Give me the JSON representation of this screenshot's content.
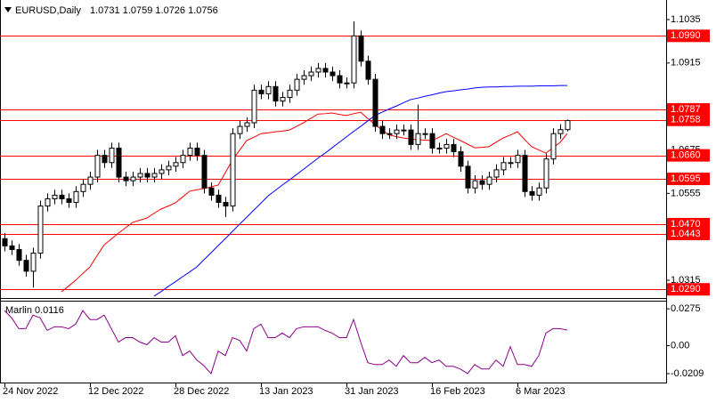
{
  "chart_data": [
    {
      "type": "candlestick",
      "title": "EURUSD,Daily",
      "subtitle": "1.0731 1.0759 1.0726 1.0756",
      "categories": [
        "24 Nov 2022",
        null,
        null,
        null,
        null,
        null,
        null,
        null,
        null,
        null,
        null,
        null,
        "12 Dec 2022",
        null,
        null,
        null,
        null,
        null,
        null,
        null,
        null,
        null,
        null,
        null,
        "28 Dec 2022",
        null,
        null,
        null,
        null,
        null,
        null,
        null,
        null,
        null,
        null,
        null,
        "13 Jan 2023",
        null,
        null,
        null,
        null,
        null,
        null,
        null,
        null,
        null,
        null,
        null,
        "31 Jan 2023",
        null,
        null,
        null,
        null,
        null,
        null,
        null,
        null,
        null,
        null,
        null,
        "16 Feb 2023",
        null,
        null,
        null,
        null,
        null,
        null,
        null,
        null,
        null,
        null,
        null,
        "6 Mar 2023",
        null,
        null,
        null,
        null,
        null,
        null,
        null
      ],
      "open": [
        1.043,
        1.041,
        1.04,
        1.037,
        1.034,
        1.039,
        1.052,
        1.054,
        1.055,
        1.054,
        1.053,
        1.056,
        1.058,
        1.06,
        1.066,
        1.064,
        1.068,
        1.06,
        1.059,
        1.06,
        1.061,
        1.06,
        1.061,
        1.062,
        1.063,
        1.064,
        1.066,
        1.068,
        1.066,
        1.057,
        1.055,
        1.053,
        1.052,
        1.072,
        1.074,
        1.075,
        1.084,
        1.083,
        1.085,
        1.081,
        1.082,
        1.084,
        1.087,
        1.088,
        1.089,
        1.09,
        1.089,
        1.088,
        1.086,
        1.086,
        1.099,
        1.092,
        1.087,
        1.074,
        1.072,
        1.072,
        1.073,
        1.073,
        1.069,
        1.072,
        1.072,
        1.068,
        1.068,
        1.069,
        1.067,
        1.063,
        1.057,
        1.059,
        1.058,
        1.06,
        1.062,
        1.064,
        1.064,
        1.066,
        1.056,
        1.055,
        1.057,
        1.065,
        1.072,
        1.0731
      ],
      "high": [
        1.0445,
        1.0425,
        1.0415,
        1.0385,
        1.0405,
        1.0535,
        1.0555,
        1.0565,
        1.0565,
        1.0555,
        1.0575,
        1.0595,
        1.0615,
        1.0675,
        1.0675,
        1.0695,
        1.0695,
        1.0615,
        1.0615,
        1.0625,
        1.0625,
        1.0625,
        1.0635,
        1.0645,
        1.0655,
        1.0675,
        1.0695,
        1.0695,
        1.0675,
        1.0585,
        1.0565,
        1.0545,
        1.0735,
        1.0755,
        1.0765,
        1.0855,
        1.0855,
        1.0865,
        1.0865,
        1.0835,
        1.0855,
        1.0885,
        1.0895,
        1.0905,
        1.0915,
        1.0915,
        1.0905,
        1.0895,
        1.0875,
        1.103,
        1.1005,
        1.0935,
        1.0885,
        1.0755,
        1.0735,
        1.0745,
        1.0745,
        1.0745,
        1.08,
        1.0735,
        1.0735,
        1.0695,
        1.0705,
        1.0705,
        1.0685,
        1.0645,
        1.0605,
        1.0605,
        1.0615,
        1.0635,
        1.0655,
        1.0655,
        1.0675,
        1.0675,
        1.0575,
        1.0585,
        1.0665,
        1.0735,
        1.0746,
        1.0759
      ],
      "low": [
        1.0395,
        1.0385,
        1.0355,
        1.0325,
        1.0295,
        1.0375,
        1.0505,
        1.0525,
        1.0525,
        1.0515,
        1.0515,
        1.0545,
        1.0565,
        1.0585,
        1.0625,
        1.0625,
        1.0585,
        1.0575,
        1.0575,
        1.0585,
        1.0585,
        1.0585,
        1.0595,
        1.0605,
        1.0615,
        1.0625,
        1.0645,
        1.0645,
        1.0555,
        1.0535,
        1.0515,
        1.049,
        1.0505,
        1.0705,
        1.0725,
        1.0735,
        1.0815,
        1.0815,
        1.0795,
        1.0795,
        1.0805,
        1.0825,
        1.0855,
        1.0865,
        1.0875,
        1.0875,
        1.0865,
        1.0845,
        1.0845,
        1.0845,
        1.0905,
        1.0855,
        1.0725,
        1.0705,
        1.0705,
        1.0705,
        1.0715,
        1.0675,
        1.0675,
        1.0705,
        1.0665,
        1.0665,
        1.0665,
        1.0655,
        1.0615,
        1.0555,
        1.0555,
        1.0565,
        1.0565,
        1.0585,
        1.0605,
        1.0625,
        1.0625,
        1.0545,
        1.0535,
        1.0535,
        1.0555,
        1.0635,
        1.0705,
        1.0726
      ],
      "close": [
        1.041,
        1.04,
        1.037,
        1.034,
        1.039,
        1.052,
        1.054,
        1.055,
        1.054,
        1.053,
        1.056,
        1.058,
        1.06,
        1.066,
        1.064,
        1.068,
        1.06,
        1.059,
        1.06,
        1.061,
        1.06,
        1.061,
        1.062,
        1.063,
        1.064,
        1.066,
        1.068,
        1.066,
        1.057,
        1.055,
        1.053,
        1.052,
        1.072,
        1.074,
        1.075,
        1.084,
        1.083,
        1.085,
        1.081,
        1.082,
        1.084,
        1.087,
        1.088,
        1.089,
        1.09,
        1.089,
        1.088,
        1.086,
        1.086,
        1.099,
        1.092,
        1.087,
        1.074,
        1.072,
        1.072,
        1.073,
        1.073,
        1.069,
        1.072,
        1.072,
        1.068,
        1.068,
        1.069,
        1.067,
        1.063,
        1.057,
        1.059,
        1.058,
        1.06,
        1.062,
        1.064,
        1.064,
        1.066,
        1.056,
        1.055,
        1.057,
        1.065,
        1.072,
        1.0731,
        1.0756
      ],
      "up_color": "#ffffff",
      "down_color": "#000000",
      "wick_color": "#000000",
      "lines": [
        {
          "color": "#ff0000",
          "values": [
            null,
            null,
            null,
            null,
            null,
            null,
            null,
            null,
            1.0283,
            1.0299,
            1.0315,
            1.0334,
            1.0352,
            1.0383,
            1.0413,
            1.0429,
            1.0445,
            1.046,
            1.0475,
            1.0481,
            1.0487,
            1.05,
            1.0512,
            1.052,
            1.0529,
            1.0545,
            1.0561,
            1.0565,
            1.0568,
            1.0573,
            1.0578,
            1.0612,
            1.0647,
            1.0674,
            1.0701,
            1.071,
            1.072,
            1.0722,
            1.0725,
            1.0727,
            1.073,
            1.074,
            1.075,
            1.0762,
            1.0774,
            1.0775,
            1.0777,
            1.0773,
            1.077,
            1.0775,
            1.0779,
            1.0762,
            1.0745,
            1.073,
            1.0716,
            1.0712,
            1.0708,
            1.0705,
            1.0703,
            1.0702,
            1.0701,
            1.071,
            1.072,
            1.071,
            1.0701,
            1.0691,
            1.0681,
            1.0682,
            1.0684,
            1.0696,
            1.0708,
            1.0716,
            1.0725,
            1.0704,
            1.0684,
            1.0675,
            1.0666,
            1.0681,
            1.0696,
            1.072
          ]
        },
        {
          "color": "#0000ff",
          "values": [
            null,
            null,
            null,
            null,
            null,
            null,
            null,
            null,
            null,
            null,
            null,
            null,
            null,
            null,
            null,
            null,
            null,
            null,
            null,
            null,
            null,
            1.0271,
            1.0284,
            1.0298,
            1.0311,
            1.0325,
            1.0338,
            1.0352,
            1.0372,
            1.0391,
            1.0411,
            1.043,
            1.045,
            1.047,
            1.0489,
            1.0509,
            1.0528,
            1.0548,
            1.0563,
            1.0578,
            1.0592,
            1.0607,
            1.0622,
            1.0637,
            1.0652,
            1.0666,
            1.0681,
            1.0696,
            1.0711,
            1.0726,
            1.074,
            1.0755,
            1.077,
            1.0779,
            1.0788,
            1.0796,
            1.0805,
            1.0814,
            1.0818,
            1.0823,
            1.0827,
            1.0832,
            1.0836,
            1.0838,
            1.0841,
            1.0843,
            1.0846,
            1.0848,
            1.0849,
            1.0849,
            1.085,
            1.085,
            1.0851,
            1.0851,
            1.0851,
            1.0852,
            1.0852,
            1.0852,
            1.0853,
            1.0853
          ]
        }
      ],
      "levels": [
        {
          "value": 1.099,
          "label": "1.0990"
        },
        1.0787,
        1.0758,
        {
          "value": 1.066,
          "label": "1.0660"
        },
        1.0595,
        {
          "value": 1.047,
          "label": "1.0470"
        },
        1.0443,
        {
          "value": 1.029,
          "label": "1.0290"
        }
      ],
      "level_color": "#ff0000",
      "ylim": [
        1.0266,
        1.1089
      ],
      "yticks": [
        1.1035,
        1.0915,
        1.0675,
        1.0555,
        1.0315
      ]
    },
    {
      "type": "line",
      "title": "Marlin 0.0116",
      "color": "#8b008b",
      "values": [
        0.0262,
        0.0208,
        0.0127,
        0.0127,
        0.0228,
        0.0208,
        0.0114,
        0.0141,
        0.0141,
        0.0127,
        0.0161,
        0.0262,
        0.0195,
        0.0195,
        0.0228,
        0.0127,
        0.0027,
        0.006,
        0.006,
        0.0027,
        0.0007,
        0.006,
        0.0027,
        0.0027,
        0.0074,
        -0.0074,
        -0.004,
        -0.0107,
        -0.015,
        -0.0208,
        -0.004,
        -0.0074,
        0.006,
        0.004,
        -0.004,
        0.0127,
        0.0161,
        0.006,
        0.006,
        0.0094,
        0.006,
        0.0127,
        0.0141,
        0.0141,
        0.0141,
        0.0114,
        0.0094,
        0.006,
        0.006,
        0.0195,
        0.0027,
        -0.0127,
        -0.0141,
        -0.0141,
        -0.0107,
        -0.0154,
        -0.0074,
        -0.0127,
        -0.0127,
        -0.0087,
        -0.0127,
        -0.0107,
        -0.0154,
        -0.0154,
        -0.0174,
        -0.0208,
        -0.0141,
        -0.0174,
        -0.0174,
        -0.0107,
        -0.0154,
        -0.0007,
        -0.0141,
        -0.0141,
        -0.0154,
        -0.0074,
        0.0094,
        0.0127,
        0.0127,
        0.0116
      ],
      "ylim": [
        -0.0275,
        0.0329
      ],
      "yticks": [
        0.0275,
        {
          "value": 0,
          "label": "0.00"
        },
        -0.0209
      ]
    }
  ]
}
